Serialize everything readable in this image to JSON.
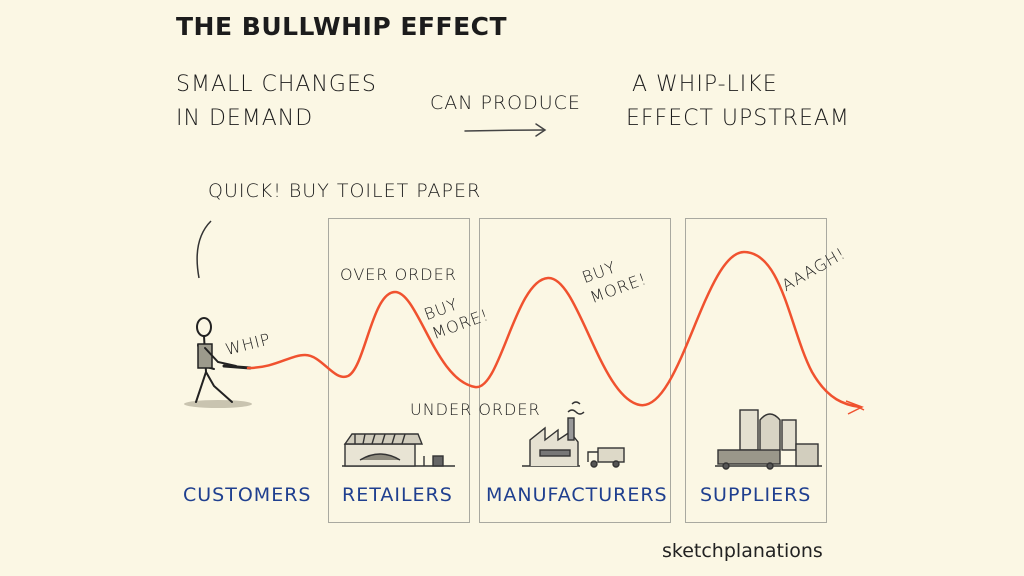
{
  "title": "THE BULLWHIP EFFECT",
  "intro": {
    "left_line1": "SMALL CHANGES",
    "left_line2": "IN DEMAND",
    "middle": "CAN PRODUCE",
    "right_line1": "A WHIP-LIKE",
    "right_line2": "EFFECT UPSTREAM"
  },
  "annotations": {
    "quote": "QUICK! BUY TOILET PAPER",
    "whip": "WHIP",
    "overorder": "OVER ORDER",
    "buy_more_1_line1": "BUY",
    "buy_more_1_line2": "MORE!",
    "buy_more_2_line1": "BUY",
    "buy_more_2_line2": "MORE!",
    "underorder": "UNDER ORDER",
    "aaagh": "AAAGH!"
  },
  "stages": [
    "CUSTOMERS",
    "RETAILERS",
    "MANUFACTURERS",
    "SUPPLIERS"
  ],
  "brand": "sketchplanations",
  "colors": {
    "background": "#fbf7e4",
    "whip": "#f0522f",
    "stage_label": "#1f3f8f",
    "box_border": "#a9a9a0",
    "ink": "#1c1c1c"
  },
  "icons": [
    "stick-figure-icon",
    "storefront-icon",
    "factory-icon",
    "truck-icon",
    "warehouse-icon"
  ]
}
